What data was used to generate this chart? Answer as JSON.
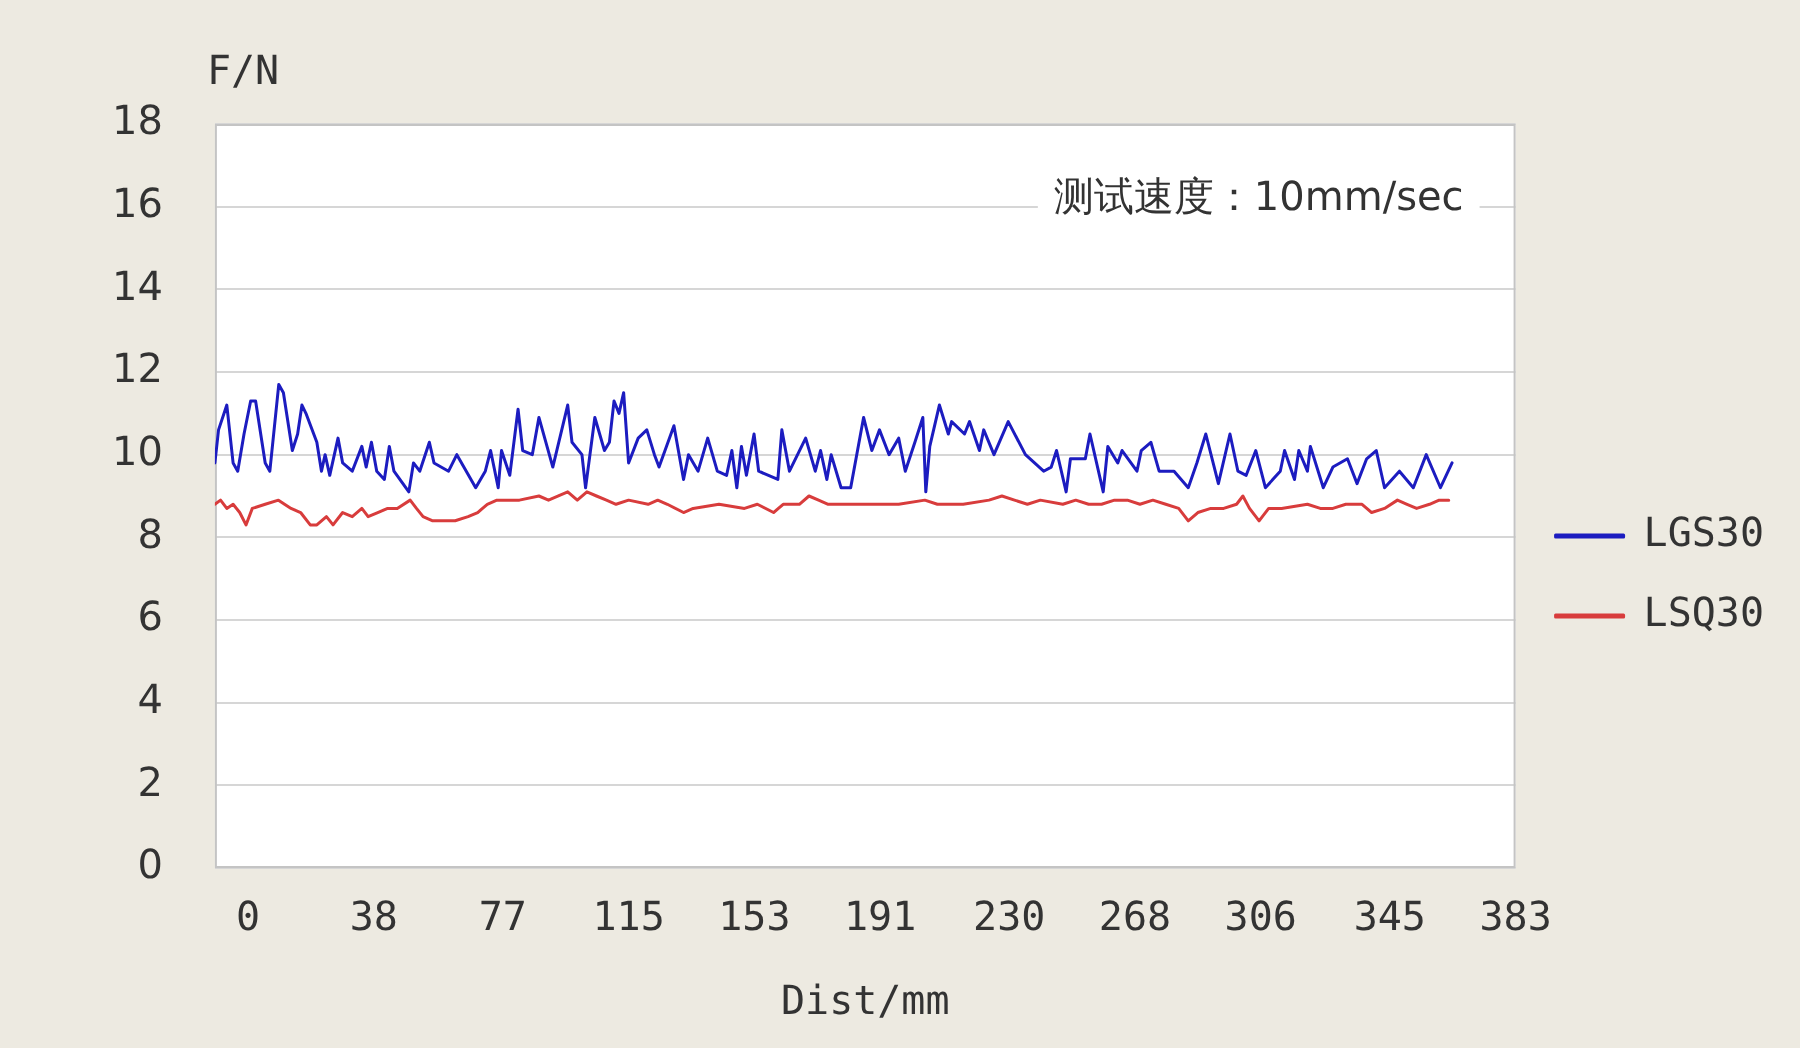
{
  "chart_data": {
    "type": "line",
    "ylabel": "F/N",
    "xlabel": "Dist/mm",
    "annotations": [
      "测试速度：10mm/sec"
    ],
    "xlim": [
      -10,
      383
    ],
    "xticks": [
      0,
      38,
      77,
      115,
      153,
      191,
      230,
      268,
      306,
      345,
      383
    ],
    "ylim": [
      0,
      18
    ],
    "yticks": [
      0,
      2,
      4,
      6,
      8,
      10,
      12,
      14,
      16,
      18
    ],
    "grid": "y",
    "legend": "right",
    "series": [
      {
        "name": "LGS30",
        "color": "#1c1cc0",
        "x": [
          -10,
          -8.9,
          -6.4,
          -4.5,
          -3.1,
          -1.2,
          0.8,
          2.3,
          5.2,
          6.6,
          9.3,
          10.7,
          13.4,
          15,
          16.3,
          17.5,
          20.8,
          22.2,
          23.3,
          24.7,
          27.2,
          28.6,
          31.5,
          34.4,
          35.7,
          37.3,
          38.9,
          41.2,
          42.7,
          44.1,
          48.6,
          50,
          51.9,
          54.8,
          56.2,
          60.6,
          63.1,
          68.8,
          71.7,
          73.3,
          75.6,
          76.6,
          79.1,
          81.6,
          83,
          85.9,
          87.9,
          92.1,
          96.6,
          97.9,
          100.9,
          102,
          104.8,
          107.7,
          109.2,
          110.6,
          112.1,
          113.5,
          115,
          117.9,
          120.5,
          122.8,
          124.2,
          128.7,
          131.6,
          133.1,
          136,
          138.9,
          141.8,
          144.6,
          146.2,
          147.7,
          149.1,
          150.6,
          152.9,
          154.3,
          160.1,
          161.3,
          163.6,
          168.5,
          171.4,
          173,
          174.9,
          176.2,
          179.2,
          182.1,
          186,
          188.5,
          190.8,
          193.7,
          196.6,
          198.6,
          201.5,
          203.9,
          204.8,
          206,
          208.9,
          211.6,
          212.6,
          216.5,
          218,
          221,
          222.3,
          225.4,
          229.7,
          234.9,
          240.4,
          242.7,
          244.3,
          247.2,
          248.5,
          253,
          254.4,
          258.4,
          259.8,
          262.8,
          264.1,
          268.6,
          269.9,
          272.8,
          275.3,
          279.8,
          284.1,
          286.7,
          289.4,
          293.2,
          296.7,
          299.1,
          301.6,
          304.5,
          307.4,
          311.9,
          313.2,
          316.2,
          317.5,
          320.1,
          321,
          324.9,
          327.8,
          332.2,
          335.1,
          338,
          340.9,
          343.4,
          347.9,
          352.1,
          356,
          360.3,
          363.8
        ],
        "values": [
          9.8,
          10.6,
          11.2,
          9.8,
          9.6,
          10.5,
          11.3,
          11.3,
          9.8,
          9.6,
          11.7,
          11.5,
          10.1,
          10.5,
          11.2,
          11.0,
          10.3,
          9.6,
          10.0,
          9.5,
          10.4,
          9.8,
          9.6,
          10.2,
          9.7,
          10.3,
          9.6,
          9.4,
          10.2,
          9.6,
          9.1,
          9.8,
          9.6,
          10.3,
          9.8,
          9.6,
          10.0,
          9.2,
          9.6,
          10.1,
          9.2,
          10.1,
          9.5,
          11.1,
          10.1,
          10.0,
          10.9,
          9.7,
          11.2,
          10.3,
          10.0,
          9.2,
          10.9,
          10.1,
          10.3,
          11.3,
          11.0,
          11.5,
          9.8,
          10.4,
          10.6,
          10.0,
          9.7,
          10.7,
          9.4,
          10.0,
          9.6,
          10.4,
          9.6,
          9.5,
          10.1,
          9.2,
          10.2,
          9.5,
          10.5,
          9.6,
          9.4,
          10.6,
          9.6,
          10.4,
          9.6,
          10.1,
          9.4,
          10.0,
          9.2,
          9.2,
          10.9,
          10.1,
          10.6,
          10.0,
          10.4,
          9.6,
          10.3,
          10.9,
          9.1,
          10.2,
          11.2,
          10.5,
          10.8,
          10.5,
          10.8,
          10.1,
          10.6,
          10.0,
          10.8,
          10.0,
          9.6,
          9.7,
          10.1,
          9.1,
          9.9,
          9.9,
          10.5,
          9.1,
          10.2,
          9.8,
          10.1,
          9.6,
          10.1,
          10.3,
          9.6,
          9.6,
          9.2,
          9.8,
          10.5,
          9.3,
          10.5,
          9.6,
          9.5,
          10.1,
          9.2,
          9.6,
          10.1,
          9.4,
          10.1,
          9.6,
          10.2,
          9.2,
          9.7,
          9.9,
          9.3,
          9.9,
          10.1,
          9.2,
          9.6,
          9.2,
          10.0,
          9.2,
          9.8
        ]
      },
      {
        "name": "LSQ30",
        "color": "#d83c3c",
        "x": [
          -10,
          -8.3,
          -6.4,
          -4.5,
          -2.5,
          -0.6,
          1.3,
          5.2,
          9.2,
          13,
          15.9,
          18.8,
          20.8,
          23.7,
          25.7,
          28.6,
          31.5,
          34.4,
          36.3,
          39.2,
          42.2,
          45.1,
          49,
          50.9,
          52.9,
          55.8,
          62.6,
          66.5,
          69.4,
          72.3,
          75.2,
          82,
          87.9,
          90.8,
          96.6,
          99.5,
          102.4,
          105.3,
          108.3,
          111.2,
          115,
          120.9,
          123.8,
          126.7,
          131.6,
          134.5,
          142.3,
          150,
          153.9,
          158.8,
          161.7,
          166.6,
          169.5,
          172.4,
          175.3,
          181.1,
          188.9,
          196.6,
          204.5,
          208.3,
          216.1,
          223.9,
          227.8,
          231.6,
          235.5,
          239.4,
          246.2,
          250.1,
          254,
          257.9,
          261.8,
          265.7,
          269.5,
          273.4,
          277.3,
          281.2,
          284.1,
          287,
          290.9,
          294.8,
          298.7,
          300.6,
          302.6,
          305.5,
          308.4,
          312.3,
          320.1,
          324,
          327.8,
          331.7,
          336.6,
          339.5,
          343.4,
          347.3,
          350.2,
          353.1,
          357,
          359.9,
          362.8
        ],
        "values": [
          8.8,
          8.9,
          8.7,
          8.8,
          8.6,
          8.3,
          8.7,
          8.8,
          8.9,
          8.7,
          8.6,
          8.3,
          8.3,
          8.5,
          8.3,
          8.6,
          8.5,
          8.7,
          8.5,
          8.6,
          8.7,
          8.7,
          8.9,
          8.7,
          8.5,
          8.4,
          8.4,
          8.5,
          8.6,
          8.8,
          8.9,
          8.9,
          9.0,
          8.9,
          9.1,
          8.9,
          9.1,
          9.0,
          8.9,
          8.8,
          8.9,
          8.8,
          8.9,
          8.8,
          8.6,
          8.7,
          8.8,
          8.7,
          8.8,
          8.6,
          8.8,
          8.8,
          9.0,
          8.9,
          8.8,
          8.8,
          8.8,
          8.8,
          8.9,
          8.8,
          8.8,
          8.9,
          9.0,
          8.9,
          8.8,
          8.9,
          8.8,
          8.9,
          8.8,
          8.8,
          8.9,
          8.9,
          8.8,
          8.9,
          8.8,
          8.7,
          8.4,
          8.6,
          8.7,
          8.7,
          8.8,
          9.0,
          8.7,
          8.4,
          8.7,
          8.7,
          8.8,
          8.7,
          8.7,
          8.8,
          8.8,
          8.6,
          8.7,
          8.9,
          8.8,
          8.7,
          8.8,
          8.9,
          8.9
        ]
      }
    ]
  }
}
